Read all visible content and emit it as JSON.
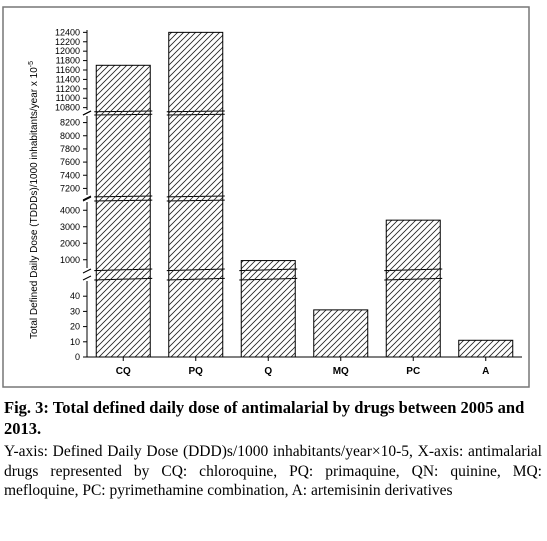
{
  "chart_data": {
    "type": "bar",
    "categories": [
      "CQ",
      "PQ",
      "Q",
      "MQ",
      "PC",
      "A"
    ],
    "values": [
      11700,
      12400,
      950,
      31,
      3400,
      11
    ],
    "ylabel": "Total Defined Daily Dose (TDDDs)/1000 inhabitants/year x 10",
    "ylabel_superscript": "-5",
    "y_segments": [
      {
        "range": [
          0,
          50
        ],
        "ticks": [
          0,
          10,
          20,
          30,
          40
        ]
      },
      {
        "range": [
          500,
          4500
        ],
        "ticks": [
          1000,
          2000,
          3000,
          4000
        ]
      },
      {
        "range": [
          7100,
          8300
        ],
        "ticks": [
          7200,
          7400,
          7600,
          7800,
          8000,
          8200
        ]
      },
      {
        "range": [
          10750,
          12450
        ],
        "ticks": [
          10800,
          11000,
          11200,
          11400,
          11600,
          11800,
          12000,
          12200,
          12400
        ]
      }
    ],
    "bar_pattern": "diagonal-hatch",
    "grid": false
  },
  "caption": {
    "title": "Fig. 3: Total defined daily dose of antimalarial by drugs between 2005 and 2013.",
    "description": "Y-axis: Defined Daily Dose (DDD)s/1000 inhabitants/year×10-5, X-axis: antimalarial drugs represented by CQ: chloroquine, PQ: primaquine, QN: quinine, MQ: mefloquine, PC: pyrimethamine combination, A: artemisinin derivatives"
  }
}
